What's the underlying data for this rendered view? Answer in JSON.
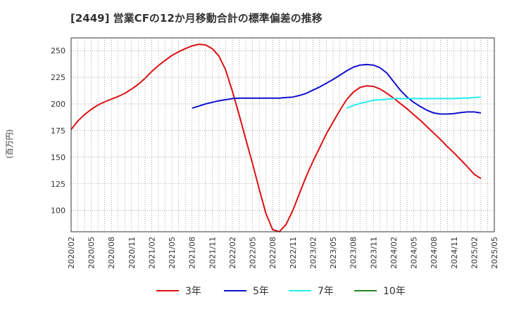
{
  "chart_data": {
    "type": "line",
    "title": "[2449]  営業CFの12か月移動合計の標準偏差の推移",
    "ylabel": "(百万円)",
    "xlabel": "",
    "x": [
      "2020/02",
      "2020/05",
      "2020/08",
      "2020/11",
      "2021/02",
      "2021/05",
      "2021/08",
      "2021/11",
      "2022/02",
      "2022/05",
      "2022/08",
      "2022/11",
      "2023/02",
      "2023/05",
      "2023/08",
      "2023/11",
      "2024/02",
      "2024/05",
      "2024/08",
      "2024/11",
      "2025/02",
      "2025/05"
    ],
    "ylim": [
      80,
      262
    ],
    "yticks": [
      100,
      125,
      150,
      175,
      200,
      225,
      250
    ],
    "grid": true,
    "legend_position": "bottom",
    "series": [
      {
        "name": "3年",
        "color": "#dd1111",
        "points": [
          [
            "2020/02",
            176
          ],
          [
            "2020/03",
            184
          ],
          [
            "2020/04",
            190
          ],
          [
            "2020/05",
            195
          ],
          [
            "2020/06",
            199
          ],
          [
            "2020/07",
            202
          ],
          [
            "2020/08",
            204.5
          ],
          [
            "2020/09",
            207
          ],
          [
            "2020/10",
            210
          ],
          [
            "2020/11",
            214
          ],
          [
            "2020/12",
            218.5
          ],
          [
            "2021/01",
            224
          ],
          [
            "2021/02",
            230.5
          ],
          [
            "2021/03",
            236
          ],
          [
            "2021/04",
            241
          ],
          [
            "2021/05",
            245.5
          ],
          [
            "2021/06",
            249
          ],
          [
            "2021/07",
            252
          ],
          [
            "2021/08",
            254.5
          ],
          [
            "2021/09",
            256
          ],
          [
            "2021/10",
            255.5
          ],
          [
            "2021/11",
            252
          ],
          [
            "2021/12",
            245
          ],
          [
            "2022/01",
            232
          ],
          [
            "2022/02",
            212
          ],
          [
            "2022/03",
            190
          ],
          [
            "2022/04",
            167
          ],
          [
            "2022/05",
            144
          ],
          [
            "2022/06",
            120
          ],
          [
            "2022/07",
            97
          ],
          [
            "2022/08",
            82
          ],
          [
            "2022/09",
            80
          ],
          [
            "2022/10",
            87
          ],
          [
            "2022/11",
            100
          ],
          [
            "2022/12",
            116
          ],
          [
            "2023/01",
            132
          ],
          [
            "2023/02",
            146
          ],
          [
            "2023/03",
            159
          ],
          [
            "2023/04",
            172
          ],
          [
            "2023/05",
            183
          ],
          [
            "2023/06",
            194
          ],
          [
            "2023/07",
            204
          ],
          [
            "2023/08",
            211
          ],
          [
            "2023/09",
            215.5
          ],
          [
            "2023/10",
            217
          ],
          [
            "2023/11",
            216.5
          ],
          [
            "2023/12",
            214
          ],
          [
            "2024/01",
            210
          ],
          [
            "2024/02",
            205.5
          ],
          [
            "2024/03",
            200.5
          ],
          [
            "2024/04",
            195.5
          ],
          [
            "2024/05",
            190
          ],
          [
            "2024/06",
            184.5
          ],
          [
            "2024/07",
            178.5
          ],
          [
            "2024/08",
            172.5
          ],
          [
            "2024/09",
            166.5
          ],
          [
            "2024/10",
            160
          ],
          [
            "2024/11",
            154
          ],
          [
            "2024/12",
            147.5
          ],
          [
            "2025/01",
            141
          ],
          [
            "2025/02",
            134
          ],
          [
            "2025/03",
            130
          ]
        ]
      },
      {
        "name": "5年",
        "color": "#1111cc",
        "points": [
          [
            "2021/08",
            196
          ],
          [
            "2021/09",
            198
          ],
          [
            "2021/10",
            200
          ],
          [
            "2021/11",
            201.5
          ],
          [
            "2021/12",
            203
          ],
          [
            "2022/01",
            204
          ],
          [
            "2022/02",
            205
          ],
          [
            "2022/03",
            205.5
          ],
          [
            "2022/04",
            205.5
          ],
          [
            "2022/05",
            205.5
          ],
          [
            "2022/06",
            205.5
          ],
          [
            "2022/07",
            205.5
          ],
          [
            "2022/08",
            205.5
          ],
          [
            "2022/09",
            205.5
          ],
          [
            "2022/10",
            206
          ],
          [
            "2022/11",
            206.5
          ],
          [
            "2022/12",
            208
          ],
          [
            "2023/01",
            210
          ],
          [
            "2023/02",
            213
          ],
          [
            "2023/03",
            216
          ],
          [
            "2023/04",
            219.5
          ],
          [
            "2023/05",
            223
          ],
          [
            "2023/06",
            227
          ],
          [
            "2023/07",
            231
          ],
          [
            "2023/08",
            234.5
          ],
          [
            "2023/09",
            236.5
          ],
          [
            "2023/10",
            237
          ],
          [
            "2023/11",
            236.5
          ],
          [
            "2023/12",
            234
          ],
          [
            "2024/01",
            229
          ],
          [
            "2024/02",
            221
          ],
          [
            "2024/03",
            213
          ],
          [
            "2024/04",
            206.5
          ],
          [
            "2024/05",
            201.5
          ],
          [
            "2024/06",
            197.5
          ],
          [
            "2024/07",
            194
          ],
          [
            "2024/08",
            191.5
          ],
          [
            "2024/09",
            190.5
          ],
          [
            "2024/10",
            190.5
          ],
          [
            "2024/11",
            191
          ],
          [
            "2024/12",
            192
          ],
          [
            "2025/01",
            192.5
          ],
          [
            "2025/02",
            192.5
          ],
          [
            "2025/03",
            191.5
          ]
        ]
      },
      {
        "name": "7年",
        "color": "#22eeee",
        "points": [
          [
            "2023/07",
            196
          ],
          [
            "2023/08",
            198.5
          ],
          [
            "2023/09",
            200.5
          ],
          [
            "2023/10",
            202
          ],
          [
            "2023/11",
            203.5
          ],
          [
            "2023/12",
            204
          ],
          [
            "2024/01",
            204.5
          ],
          [
            "2024/02",
            205
          ],
          [
            "2024/03",
            205
          ],
          [
            "2024/04",
            205
          ],
          [
            "2024/05",
            205
          ],
          [
            "2024/06",
            205
          ],
          [
            "2024/07",
            205
          ],
          [
            "2024/08",
            205
          ],
          [
            "2024/09",
            205
          ],
          [
            "2024/10",
            205
          ],
          [
            "2024/11",
            205
          ],
          [
            "2024/12",
            205.5
          ],
          [
            "2025/01",
            205.5
          ],
          [
            "2025/02",
            206
          ],
          [
            "2025/03",
            206.5
          ]
        ]
      },
      {
        "name": "10年",
        "color": "#228822",
        "points": []
      }
    ]
  }
}
